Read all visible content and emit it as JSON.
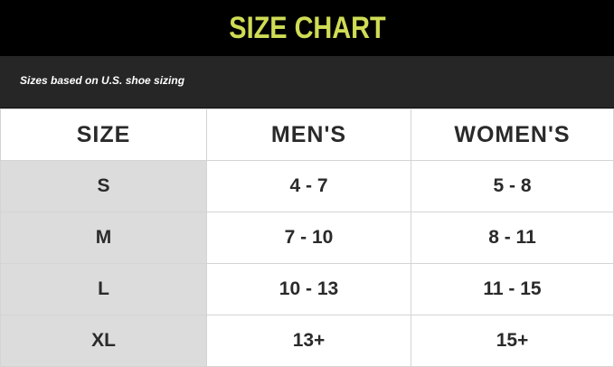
{
  "title": "SIZE CHART",
  "subtitle": "Sizes based on U.S. shoe sizing",
  "colors": {
    "title": "#cfdc55",
    "header_bg": "#000000",
    "subheader_bg": "#262626",
    "size_col_bg": "#dcdcdc"
  },
  "table": {
    "headers": [
      "SIZE",
      "MEN'S",
      "WOMEN'S"
    ],
    "rows": [
      [
        "S",
        "4 - 7",
        "5 - 8"
      ],
      [
        "M",
        "7 - 10",
        "8 - 11"
      ],
      [
        "L",
        "10 - 13",
        "11 - 15"
      ],
      [
        "XL",
        "13+",
        "15+"
      ]
    ]
  }
}
